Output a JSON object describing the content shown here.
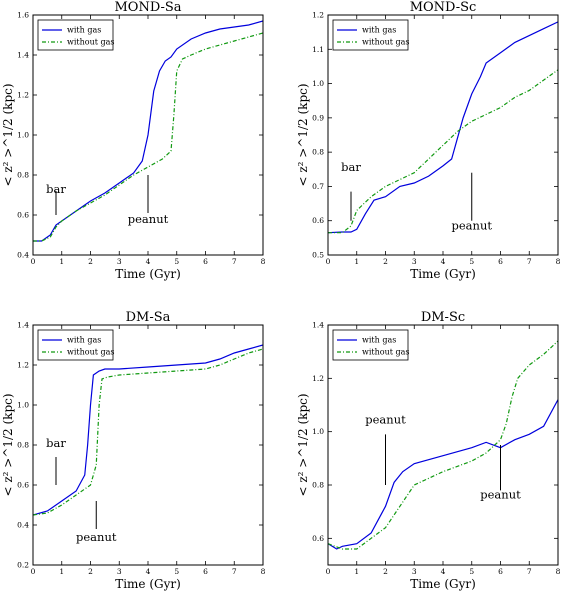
{
  "chart_data": [
    {
      "type": "line",
      "title": "MOND-Sa",
      "xlabel": "Time (Gyr)",
      "ylabel": "< z² >^1/2 (kpc)",
      "xlim": [
        0,
        8
      ],
      "ylim": [
        0.4,
        1.6
      ],
      "xticks": [
        "0",
        "1",
        "2",
        "3",
        "4",
        "5",
        "6",
        "7",
        "8"
      ],
      "yticks": [
        "0.4",
        "0.6",
        "0.8",
        "1.0",
        "1.2",
        "1.4",
        "1.6"
      ],
      "legend": "top-left",
      "series": [
        {
          "name": "with gas",
          "color": "#0000dd",
          "style": "solid",
          "x": [
            0,
            0.3,
            0.6,
            0.8,
            1,
            1.5,
            2,
            2.5,
            3,
            3.5,
            3.8,
            4,
            4.2,
            4.4,
            4.6,
            4.8,
            5,
            5.5,
            6,
            6.5,
            7,
            7.5,
            8
          ],
          "y": [
            0.47,
            0.47,
            0.5,
            0.55,
            0.57,
            0.62,
            0.67,
            0.71,
            0.76,
            0.81,
            0.87,
            1.0,
            1.22,
            1.32,
            1.37,
            1.39,
            1.43,
            1.48,
            1.51,
            1.53,
            1.54,
            1.55,
            1.57
          ]
        },
        {
          "name": "without gas",
          "color": "#119911",
          "style": "dashdot",
          "x": [
            0,
            0.3,
            0.6,
            0.8,
            1,
            1.5,
            2,
            2.5,
            3,
            3.5,
            4,
            4.5,
            4.8,
            4.9,
            5,
            5.2,
            5.5,
            6,
            6.5,
            7,
            7.5,
            8
          ],
          "y": [
            0.47,
            0.47,
            0.49,
            0.54,
            0.57,
            0.62,
            0.66,
            0.7,
            0.75,
            0.8,
            0.84,
            0.88,
            0.92,
            1.1,
            1.32,
            1.38,
            1.4,
            1.43,
            1.45,
            1.47,
            1.49,
            1.51
          ]
        }
      ],
      "annotations": [
        {
          "text": "bar",
          "x": 0.8,
          "y": 0.71,
          "line": [
            0.6,
            0.72
          ]
        },
        {
          "text": "peanut",
          "x": 4.0,
          "y": 0.56,
          "line": [
            0.61,
            0.8
          ]
        }
      ]
    },
    {
      "type": "line",
      "title": "MOND-Sc",
      "xlabel": "Time (Gyr)",
      "ylabel": "< z² >^1/2 (kpc)",
      "xlim": [
        0,
        8
      ],
      "ylim": [
        0.5,
        1.2
      ],
      "xticks": [
        "0",
        "1",
        "2",
        "3",
        "4",
        "5",
        "6",
        "7",
        "8"
      ],
      "yticks": [
        "0.5",
        "0.6",
        "0.7",
        "0.8",
        "0.9",
        "1.0",
        "1.1",
        "1.2"
      ],
      "legend": "top-left",
      "series": [
        {
          "name": "with gas",
          "color": "#0000dd",
          "style": "solid",
          "x": [
            0,
            0.5,
            0.8,
            1,
            1.3,
            1.6,
            2,
            2.5,
            3,
            3.5,
            4,
            4.3,
            4.5,
            4.7,
            5,
            5.3,
            5.5,
            6,
            6.5,
            7,
            7.5,
            8
          ],
          "y": [
            0.565,
            0.567,
            0.567,
            0.575,
            0.62,
            0.66,
            0.67,
            0.7,
            0.71,
            0.73,
            0.76,
            0.78,
            0.84,
            0.9,
            0.97,
            1.02,
            1.06,
            1.09,
            1.12,
            1.14,
            1.16,
            1.18
          ]
        },
        {
          "name": "without gas",
          "color": "#119911",
          "style": "dashdot",
          "x": [
            0,
            0.5,
            0.8,
            1,
            1.5,
            2,
            2.5,
            3,
            3.5,
            4,
            4.5,
            5,
            5.5,
            6,
            6.5,
            7,
            7.5,
            8
          ],
          "y": [
            0.565,
            0.565,
            0.585,
            0.63,
            0.67,
            0.7,
            0.72,
            0.74,
            0.78,
            0.82,
            0.86,
            0.89,
            0.91,
            0.93,
            0.96,
            0.98,
            1.01,
            1.04
          ]
        }
      ],
      "annotations": [
        {
          "text": "bar",
          "x": 0.8,
          "y": 0.745,
          "line": [
            0.6,
            0.685
          ]
        },
        {
          "text": "peanut",
          "x": 5.0,
          "y": 0.575,
          "line": [
            0.6,
            0.74
          ]
        }
      ]
    },
    {
      "type": "line",
      "title": "DM-Sa",
      "xlabel": "Time (Gyr)",
      "ylabel": "< z² >^1/2 (kpc)",
      "xlim": [
        0,
        8
      ],
      "ylim": [
        0.2,
        1.4
      ],
      "xticks": [
        "0",
        "1",
        "2",
        "3",
        "4",
        "5",
        "6",
        "7",
        "8"
      ],
      "yticks": [
        "0.2",
        "0.4",
        "0.6",
        "0.8",
        "1.0",
        "1.2",
        "1.4"
      ],
      "legend": "top-left",
      "series": [
        {
          "name": "with gas",
          "color": "#0000dd",
          "style": "solid",
          "x": [
            0,
            0.5,
            1,
            1.5,
            1.8,
            1.9,
            2,
            2.1,
            2.3,
            2.5,
            3,
            4,
            5,
            6,
            6.5,
            7,
            7.5,
            8
          ],
          "y": [
            0.45,
            0.47,
            0.52,
            0.57,
            0.65,
            0.8,
            1.0,
            1.15,
            1.17,
            1.18,
            1.18,
            1.19,
            1.2,
            1.21,
            1.23,
            1.26,
            1.28,
            1.3
          ]
        },
        {
          "name": "without gas",
          "color": "#119911",
          "style": "dashdot",
          "x": [
            0,
            0.5,
            1,
            1.5,
            2,
            2.2,
            2.3,
            2.4,
            2.6,
            3,
            4,
            5,
            6,
            6.5,
            7,
            7.5,
            8
          ],
          "y": [
            0.45,
            0.46,
            0.5,
            0.55,
            0.6,
            0.7,
            1.0,
            1.13,
            1.14,
            1.15,
            1.16,
            1.17,
            1.18,
            1.2,
            1.23,
            1.26,
            1.28
          ]
        }
      ],
      "annotations": [
        {
          "text": "bar",
          "x": 0.8,
          "y": 0.79,
          "line": [
            0.6,
            0.74
          ]
        },
        {
          "text": "peanut",
          "x": 2.2,
          "y": 0.32,
          "line": [
            0.38,
            0.52
          ]
        }
      ]
    },
    {
      "type": "line",
      "title": "DM-Sc",
      "xlabel": "Time (Gyr)",
      "ylabel": "< z² >^1/2 (kpc)",
      "xlim": [
        0,
        8
      ],
      "ylim": [
        0.5,
        1.4
      ],
      "xticks": [
        "0",
        "1",
        "2",
        "3",
        "4",
        "5",
        "6",
        "7",
        "8"
      ],
      "yticks": [
        "0.6",
        "0.8",
        "1.0",
        "1.2",
        "1.4"
      ],
      "legend": "top-left",
      "series": [
        {
          "name": "with gas",
          "color": "#0000dd",
          "style": "solid",
          "x": [
            0,
            0.3,
            0.5,
            1,
            1.5,
            2,
            2.3,
            2.6,
            3,
            4,
            5,
            5.5,
            6,
            6.5,
            7,
            7.5,
            8
          ],
          "y": [
            0.58,
            0.56,
            0.57,
            0.58,
            0.62,
            0.72,
            0.81,
            0.85,
            0.88,
            0.91,
            0.94,
            0.96,
            0.94,
            0.97,
            0.99,
            1.02,
            1.12
          ]
        },
        {
          "name": "without gas",
          "color": "#119911",
          "style": "dashdot",
          "x": [
            0,
            0.5,
            1,
            1.5,
            2,
            2.5,
            3,
            4,
            5,
            5.5,
            6,
            6.2,
            6.4,
            6.6,
            7,
            7.5,
            8
          ],
          "y": [
            0.58,
            0.56,
            0.56,
            0.6,
            0.64,
            0.72,
            0.8,
            0.85,
            0.89,
            0.92,
            0.97,
            1.03,
            1.13,
            1.2,
            1.25,
            1.29,
            1.34
          ]
        }
      ],
      "annotations": [
        {
          "text": "peanut",
          "x": 2.0,
          "y": 1.03,
          "line": [
            0.8,
            0.99
          ]
        },
        {
          "text": "peanut",
          "x": 6.0,
          "y": 0.75,
          "line": [
            0.78,
            0.95
          ]
        }
      ]
    }
  ]
}
